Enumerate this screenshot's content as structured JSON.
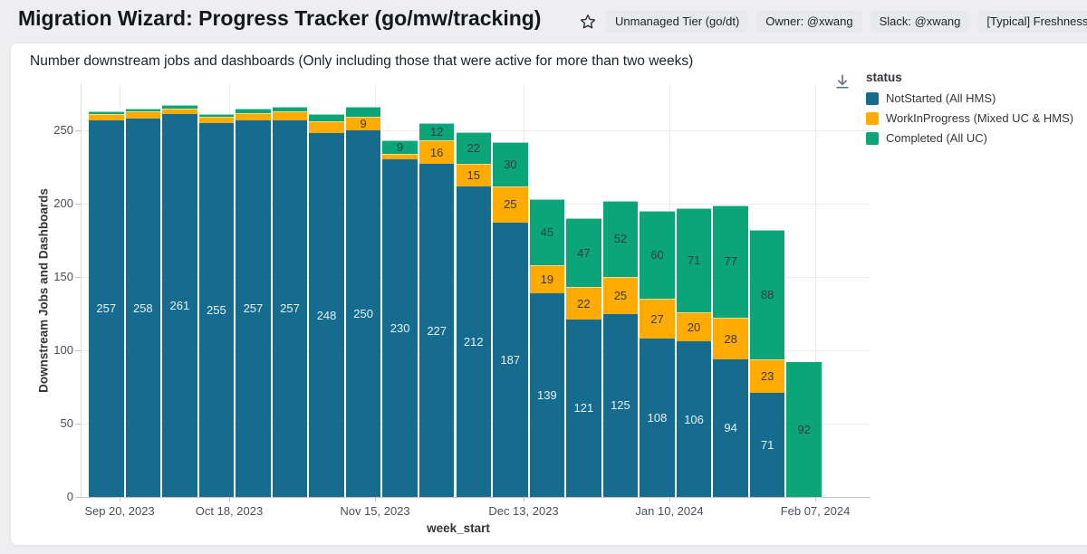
{
  "header": {
    "title": "Migration Wizard: Progress Tracker (go/mw/tracking)",
    "badges": [
      "Unmanaged Tier (go/dt)",
      "Owner: @xwang",
      "Slack: @xwang",
      "[Typical] Freshness: Unknown"
    ]
  },
  "legend": {
    "title": "status",
    "items": [
      {
        "label": "NotStarted (All HMS)",
        "color": "#156c8e"
      },
      {
        "label": "WorkInProgress (Mixed UC & HMS)",
        "color": "#ffab00"
      },
      {
        "label": "Completed (All UC)",
        "color": "#0ba577"
      }
    ]
  },
  "chart_data": {
    "type": "bar",
    "stacked": true,
    "title": "Number downstream jobs and dashboards (Only including those that were active for more than two weeks)",
    "xlabel": "week_start",
    "ylabel": "Downstream Jobs and Dashboards",
    "ylim": [
      0,
      281
    ],
    "yticks": [
      0,
      50,
      100,
      150,
      200,
      250
    ],
    "x_tick_labels": [
      "Sep 20, 2023",
      "Oct 18, 2023",
      "Nov 15, 2023",
      "Dec 13, 2023",
      "Jan 10, 2024",
      "Feb 07, 2024"
    ],
    "x": [
      "Sep 20, 2023",
      "Sep 27, 2023",
      "Oct 04, 2023",
      "Oct 11, 2023",
      "Oct 18, 2023",
      "Oct 25, 2023",
      "Nov 01, 2023",
      "Nov 08, 2023",
      "Nov 15, 2023",
      "Nov 22, 2023",
      "Nov 29, 2023",
      "Dec 06, 2023",
      "Dec 13, 2023",
      "Dec 20, 2023",
      "Dec 27, 2023",
      "Jan 03, 2024",
      "Jan 10, 2024",
      "Jan 17, 2024",
      "Jan 24, 2024",
      "Jan 31, 2024"
    ],
    "series": [
      {
        "name": "NotStarted (All HMS)",
        "color": "#156c8e",
        "label_color": "#e9f0f4",
        "values": [
          257,
          258,
          261,
          255,
          257,
          257,
          248,
          250,
          230,
          227,
          212,
          187,
          139,
          121,
          125,
          108,
          106,
          94,
          71,
          0
        ]
      },
      {
        "name": "WorkInProgress (Mixed UC & HMS)",
        "color": "#ffab00",
        "label_color": "#383b3e",
        "values": [
          4,
          5,
          4,
          4,
          5,
          6,
          8,
          9,
          4,
          16,
          15,
          25,
          19,
          22,
          25,
          27,
          20,
          28,
          23,
          0
        ]
      },
      {
        "name": "Completed (All UC)",
        "color": "#0ba577",
        "label_color": "#383b3e",
        "values": [
          2,
          2,
          2,
          2,
          3,
          3,
          5,
          7,
          9,
          12,
          22,
          30,
          45,
          47,
          52,
          60,
          71,
          77,
          88,
          92
        ]
      }
    ],
    "label_min_value": 9,
    "legend_position": "right",
    "grid": true
  }
}
